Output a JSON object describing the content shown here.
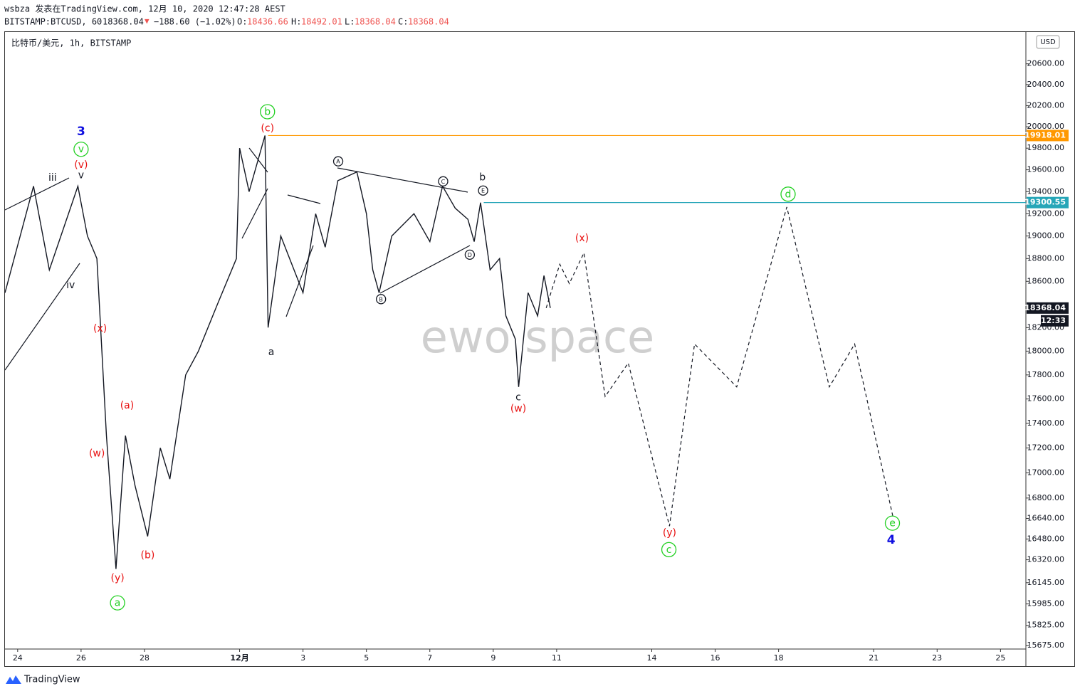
{
  "header": {
    "line1": "wsbza 发表在TradingView.com, 12月 10, 2020 12:47:28 AEST",
    "symbol": "BITSTAMP:BTCUSD, 60",
    "last": "18368.04",
    "arrow": "▼",
    "change": "−188.60 (−1.02%)",
    "o_label": "O:",
    "o": "18436.66",
    "h_label": "H:",
    "h": "18492.01",
    "l_label": "L:",
    "l": "18368.04",
    "c_label": "C:",
    "c": "18368.04",
    "currency_button": "USD"
  },
  "chart_data": {
    "type": "line",
    "title": "比特币/美元, 1h, BITSTAMP",
    "log_scale": true,
    "xlim": [
      23.6,
      55.8
    ],
    "ylim": [
      15650,
      20910
    ],
    "xticks": [
      24,
      26,
      28,
      {
        "value": 31,
        "label": "12月"
      },
      {
        "value": 33,
        "label": "3"
      },
      {
        "value": 35,
        "label": "5"
      },
      {
        "value": 37,
        "label": "7"
      },
      {
        "value": 39,
        "label": "9"
      },
      {
        "value": 41,
        "label": "11"
      },
      {
        "value": 44,
        "label": "14"
      },
      {
        "value": 46,
        "label": "16"
      },
      {
        "value": 48,
        "label": "18"
      },
      {
        "value": 51,
        "label": "21"
      },
      {
        "value": 53,
        "label": "23"
      },
      {
        "value": 55,
        "label": "25"
      }
    ],
    "yticks": [
      {
        "value": 20600,
        "label": "20600.00"
      },
      {
        "value": 20400,
        "label": "20400.00"
      },
      {
        "value": 20200,
        "label": "20200.00"
      },
      {
        "value": 20000,
        "label": "20000.00"
      },
      {
        "value": 19800,
        "label": "19800.00"
      },
      {
        "value": 19600,
        "label": "19600.00"
      },
      {
        "value": 19400,
        "label": "19400.00"
      },
      {
        "value": 19200,
        "label": "19200.00"
      },
      {
        "value": 19000,
        "label": "19000.00"
      },
      {
        "value": 18800,
        "label": "18800.00"
      },
      {
        "value": 18600,
        "label": "18600.00"
      },
      {
        "value": 18200,
        "label": "18200.00"
      },
      {
        "value": 18000,
        "label": "18000.00"
      },
      {
        "value": 17800,
        "label": "17800.00"
      },
      {
        "value": 17600,
        "label": "17600.00"
      },
      {
        "value": 17400,
        "label": "17400.00"
      },
      {
        "value": 17200,
        "label": "17200.00"
      },
      {
        "value": 17000,
        "label": "17000.00"
      },
      {
        "value": 16800,
        "label": "16800.00"
      },
      {
        "value": 16640,
        "label": "16640.00"
      },
      {
        "value": 16480,
        "label": "16480.00"
      },
      {
        "value": 16320,
        "label": "16320.00"
      },
      {
        "value": 16145,
        "label": "16145.00"
      },
      {
        "value": 15985,
        "label": "15985.00"
      },
      {
        "value": 15825,
        "label": "15825.00"
      },
      {
        "value": 15675,
        "label": "15675.00"
      }
    ],
    "series": [
      {
        "color": "#131722",
        "style": "solid",
        "x": [
          23.6,
          24.5,
          25.0,
          25.9,
          26.2,
          26.5,
          26.8,
          27.1,
          27.4,
          27.7,
          28.1,
          28.5,
          28.8,
          29.3,
          29.7,
          30.3,
          30.9,
          31.0,
          31.3,
          31.8,
          31.9,
          32.3,
          33.0,
          33.4,
          33.7,
          34.1,
          34.7,
          35.0,
          35.2,
          35.4,
          35.8,
          36.5,
          37.0,
          37.4,
          37.8,
          38.2,
          38.4,
          38.6,
          38.9,
          39.2,
          39.4,
          39.7,
          39.8,
          40.1,
          40.4,
          40.6,
          40.8
        ],
        "values": [
          18500,
          19450,
          18700,
          19450,
          19000,
          18800,
          17300,
          16250,
          17300,
          16900,
          16500,
          17200,
          16950,
          17800,
          18000,
          18400,
          18800,
          19800,
          19400,
          19918,
          18200,
          19000,
          18500,
          19200,
          18900,
          19500,
          19580,
          19200,
          18700,
          18500,
          19000,
          19200,
          18950,
          19450,
          19250,
          19150,
          18950,
          19300,
          18700,
          18800,
          18300,
          18100,
          17700,
          18500,
          18300,
          18650,
          18368
        ]
      },
      {
        "color": "#131722",
        "style": "dashed",
        "x": [
          40.67,
          41.1,
          41.4,
          41.86,
          42.53,
          43.26,
          44.56,
          45.35,
          46.68,
          48.26,
          49.6,
          50.4,
          51.6
        ],
        "values": [
          18368,
          18750,
          18580,
          18850,
          17620,
          17900,
          16580,
          18060,
          17700,
          19260,
          17700,
          18060,
          16660
        ]
      }
    ],
    "price_lines": [
      {
        "value": 19918.01,
        "color": "#ff9800",
        "from": 31.9
      },
      {
        "value": 19300.55,
        "color": "#26a6b8",
        "from": 38.7
      },
      {
        "value": 18368.04,
        "color": "#131722",
        "countdown": "12:33"
      }
    ],
    "annotations": [
      {
        "text": "3",
        "x": 26.0,
        "y": 19955,
        "color": "#1010e0",
        "circled": false,
        "bold": true
      },
      {
        "text": "v",
        "x": 26.0,
        "y": 19790,
        "color": "#22d022",
        "circled": true
      },
      {
        "text": "(v)",
        "x": 26.0,
        "y": 19644,
        "color": "#e81010",
        "circled": false
      },
      {
        "text": "v",
        "x": 26.0,
        "y": 19547,
        "color": "#131722",
        "circled": false
      },
      {
        "text": "iii",
        "x": 25.1,
        "y": 19525,
        "color": "#131722",
        "circled": false
      },
      {
        "text": "iv",
        "x": 25.67,
        "y": 18565,
        "color": "#131722",
        "circled": false
      },
      {
        "text": "(x)",
        "x": 26.6,
        "y": 18190,
        "color": "#e81010",
        "circled": false
      },
      {
        "text": "(w)",
        "x": 26.5,
        "y": 17155,
        "color": "#e81010",
        "circled": false
      },
      {
        "text": "(a)",
        "x": 27.45,
        "y": 17545,
        "color": "#e81010",
        "circled": false
      },
      {
        "text": "(y)",
        "x": 27.15,
        "y": 16179,
        "color": "#e81010",
        "circled": false
      },
      {
        "text": "a",
        "x": 27.15,
        "y": 15993,
        "color": "#22d022",
        "circled": true
      },
      {
        "text": "(b)",
        "x": 28.1,
        "y": 16354,
        "color": "#e81010",
        "circled": false
      },
      {
        "text": "b",
        "x": 31.88,
        "y": 20142,
        "color": "#22d022",
        "circled": true
      },
      {
        "text": "(c)",
        "x": 31.88,
        "y": 19983,
        "color": "#e81010",
        "circled": false
      },
      {
        "text": "a",
        "x": 32.0,
        "y": 17990,
        "color": "#131722",
        "circled": false
      },
      {
        "text": "A",
        "x": 34.11,
        "y": 19678,
        "color": "#131722",
        "circled": true,
        "small": true
      },
      {
        "text": "B",
        "x": 35.46,
        "y": 18445,
        "color": "#131722",
        "circled": true,
        "small": true
      },
      {
        "text": "C",
        "x": 37.42,
        "y": 19494,
        "color": "#131722",
        "circled": true,
        "small": true
      },
      {
        "text": "D",
        "x": 38.26,
        "y": 18834,
        "color": "#131722",
        "circled": true,
        "small": true
      },
      {
        "text": "E",
        "x": 38.68,
        "y": 19410,
        "color": "#131722",
        "circled": true,
        "small": true
      },
      {
        "text": "b",
        "x": 38.66,
        "y": 19530,
        "color": "#131722",
        "circled": false
      },
      {
        "text": "c",
        "x": 39.79,
        "y": 17614,
        "color": "#131722",
        "circled": false
      },
      {
        "text": "(w)",
        "x": 39.79,
        "y": 17520,
        "color": "#e81010",
        "circled": false
      },
      {
        "text": "(x)",
        "x": 41.8,
        "y": 18978,
        "color": "#e81010",
        "circled": false
      },
      {
        "text": "d",
        "x": 48.3,
        "y": 19377,
        "color": "#22d022",
        "circled": true
      },
      {
        "text": "(y)",
        "x": 44.56,
        "y": 16526,
        "color": "#e81010",
        "circled": false
      },
      {
        "text": "c",
        "x": 44.54,
        "y": 16398,
        "color": "#22d022",
        "circled": true
      },
      {
        "text": "e",
        "x": 51.59,
        "y": 16603,
        "color": "#22d022",
        "circled": true
      },
      {
        "text": "4",
        "x": 51.55,
        "y": 16470,
        "color": "#1010e0",
        "circled": false,
        "bold": true
      }
    ],
    "watermark": "ewo space"
  },
  "footer": {
    "brand": "TradingView"
  }
}
